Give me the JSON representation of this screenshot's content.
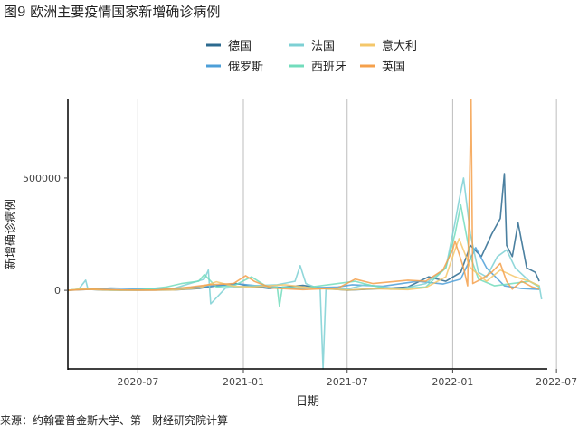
{
  "title": "图9 欧洲主要疫情国家新增确诊病例",
  "source": "来源：约翰霍普金斯大学、第一财经研究院计算",
  "chart_data": {
    "type": "line",
    "xlabel": "日期",
    "ylabel": "新增确诊病例",
    "xlim": [
      "2020-03-01",
      "2022-06-15"
    ],
    "ylim": [
      -350000,
      850000
    ],
    "x_ticks": [
      "2020-07",
      "2021-01",
      "2021-07",
      "2022-01",
      "2022-07"
    ],
    "y_ticks": [
      0,
      500000
    ],
    "y_tick_labels": [
      "0",
      "500000"
    ],
    "grid": "vertical-major",
    "legend_position": "top",
    "series": [
      {
        "name": "德国",
        "color": "#2c6a8f",
        "points": [
          [
            "2020-03-01",
            0
          ],
          [
            "2020-04-01",
            5000
          ],
          [
            "2020-05-01",
            1000
          ],
          [
            "2020-07-01",
            500
          ],
          [
            "2020-09-01",
            1500
          ],
          [
            "2020-10-15",
            8000
          ],
          [
            "2020-11-15",
            20000
          ],
          [
            "2020-12-20",
            30000
          ],
          [
            "2021-01-15",
            18000
          ],
          [
            "2021-02-15",
            8000
          ],
          [
            "2021-04-15",
            22000
          ],
          [
            "2021-05-15",
            10000
          ],
          [
            "2021-07-01",
            800
          ],
          [
            "2021-08-15",
            6000
          ],
          [
            "2021-09-15",
            10000
          ],
          [
            "2021-10-15",
            15000
          ],
          [
            "2021-11-20",
            60000
          ],
          [
            "2021-12-20",
            40000
          ],
          [
            "2022-01-15",
            80000
          ],
          [
            "2022-02-01",
            200000
          ],
          [
            "2022-02-20",
            150000
          ],
          [
            "2022-03-10",
            250000
          ],
          [
            "2022-03-25",
            320000
          ],
          [
            "2022-04-01",
            520000
          ],
          [
            "2022-04-05",
            200000
          ],
          [
            "2022-04-15",
            150000
          ],
          [
            "2022-04-25",
            300000
          ],
          [
            "2022-05-10",
            100000
          ],
          [
            "2022-05-25",
            80000
          ],
          [
            "2022-06-01",
            40000
          ]
        ]
      },
      {
        "name": "俄罗斯",
        "color": "#4d9fd8",
        "points": [
          [
            "2020-03-01",
            0
          ],
          [
            "2020-04-15",
            5000
          ],
          [
            "2020-05-15",
            10000
          ],
          [
            "2020-07-01",
            7000
          ],
          [
            "2020-09-01",
            5000
          ],
          [
            "2020-11-01",
            18000
          ],
          [
            "2020-12-25",
            28000
          ],
          [
            "2021-02-01",
            18000
          ],
          [
            "2021-04-01",
            9000
          ],
          [
            "2021-06-15",
            15000
          ],
          [
            "2021-07-10",
            25000
          ],
          [
            "2021-09-01",
            18000
          ],
          [
            "2021-11-01",
            40000
          ],
          [
            "2021-12-15",
            28000
          ],
          [
            "2022-01-15",
            50000
          ],
          [
            "2022-02-10",
            190000
          ],
          [
            "2022-03-01",
            100000
          ],
          [
            "2022-04-01",
            20000
          ],
          [
            "2022-05-01",
            8000
          ],
          [
            "2022-06-01",
            4000
          ]
        ]
      },
      {
        "name": "法国",
        "color": "#7dd0d4",
        "points": [
          [
            "2020-03-01",
            0
          ],
          [
            "2020-03-20",
            5000
          ],
          [
            "2020-04-01",
            45000
          ],
          [
            "2020-04-05",
            5000
          ],
          [
            "2020-06-01",
            500
          ],
          [
            "2020-09-01",
            8000
          ],
          [
            "2020-10-25",
            50000
          ],
          [
            "2020-11-01",
            90000
          ],
          [
            "2020-11-05",
            -60000
          ],
          [
            "2020-12-01",
            10000
          ],
          [
            "2021-01-15",
            20000
          ],
          [
            "2021-03-01",
            25000
          ],
          [
            "2021-04-01",
            40000
          ],
          [
            "2021-04-10",
            110000
          ],
          [
            "2021-04-20",
            30000
          ],
          [
            "2021-05-15",
            5000
          ],
          [
            "2021-05-20",
            -350000
          ],
          [
            "2021-05-25",
            5000
          ],
          [
            "2021-07-01",
            5000
          ],
          [
            "2021-08-01",
            25000
          ],
          [
            "2021-10-01",
            6000
          ],
          [
            "2021-11-15",
            30000
          ],
          [
            "2021-12-20",
            100000
          ],
          [
            "2022-01-05",
            300000
          ],
          [
            "2022-01-12",
            400000
          ],
          [
            "2022-01-20",
            500000
          ],
          [
            "2022-02-01",
            250000
          ],
          [
            "2022-02-15",
            80000
          ],
          [
            "2022-03-01",
            60000
          ],
          [
            "2022-03-20",
            150000
          ],
          [
            "2022-04-05",
            180000
          ],
          [
            "2022-04-20",
            100000
          ],
          [
            "2022-05-15",
            40000
          ],
          [
            "2022-06-01",
            20000
          ],
          [
            "2022-06-05",
            -40000
          ]
        ]
      },
      {
        "name": "西班牙",
        "color": "#72dcbc",
        "points": [
          [
            "2020-03-01",
            0
          ],
          [
            "2020-04-01",
            8000
          ],
          [
            "2020-05-15",
            500
          ],
          [
            "2020-07-01",
            1000
          ],
          [
            "2020-08-20",
            15000
          ],
          [
            "2020-09-15",
            30000
          ],
          [
            "2020-10-15",
            40000
          ],
          [
            "2020-10-25",
            70000
          ],
          [
            "2020-11-15",
            15000
          ],
          [
            "2020-12-15",
            20000
          ],
          [
            "2021-01-15",
            60000
          ],
          [
            "2021-02-15",
            10000
          ],
          [
            "2021-03-01",
            15000
          ],
          [
            "2021-03-05",
            -70000
          ],
          [
            "2021-03-10",
            15000
          ],
          [
            "2021-04-15",
            10000
          ],
          [
            "2021-07-15",
            40000
          ],
          [
            "2021-08-15",
            20000
          ],
          [
            "2021-09-15",
            5000
          ],
          [
            "2021-11-15",
            15000
          ],
          [
            "2021-12-20",
            100000
          ],
          [
            "2022-01-05",
            250000
          ],
          [
            "2022-01-15",
            380000
          ],
          [
            "2022-02-01",
            150000
          ],
          [
            "2022-02-15",
            50000
          ],
          [
            "2022-03-15",
            20000
          ],
          [
            "2022-04-15",
            30000
          ],
          [
            "2022-05-15",
            40000
          ],
          [
            "2022-06-01",
            15000
          ]
        ]
      },
      {
        "name": "意大利",
        "color": "#f4c76a",
        "points": [
          [
            "2020-03-01",
            0
          ],
          [
            "2020-03-25",
            6000
          ],
          [
            "2020-05-01",
            1500
          ],
          [
            "2020-07-01",
            300
          ],
          [
            "2020-09-01",
            1500
          ],
          [
            "2020-10-15",
            10000
          ],
          [
            "2020-11-15",
            38000
          ],
          [
            "2020-12-15",
            18000
          ],
          [
            "2021-01-15",
            15000
          ],
          [
            "2021-03-15",
            25000
          ],
          [
            "2021-05-01",
            10000
          ],
          [
            "2021-07-01",
            1000
          ],
          [
            "2021-08-15",
            7000
          ],
          [
            "2021-10-15",
            3000
          ],
          [
            "2021-11-15",
            12000
          ],
          [
            "2021-12-20",
            60000
          ],
          [
            "2022-01-05",
            180000
          ],
          [
            "2022-01-12",
            230000
          ],
          [
            "2022-02-01",
            100000
          ],
          [
            "2022-03-01",
            40000
          ],
          [
            "2022-03-25",
            90000
          ],
          [
            "2022-04-20",
            60000
          ],
          [
            "2022-05-15",
            40000
          ],
          [
            "2022-06-01",
            20000
          ]
        ]
      },
      {
        "name": "英国",
        "color": "#f5a04b",
        "points": [
          [
            "2020-03-01",
            0
          ],
          [
            "2020-04-15",
            5000
          ],
          [
            "2020-06-01",
            1500
          ],
          [
            "2020-08-01",
            1000
          ],
          [
            "2020-10-01",
            15000
          ],
          [
            "2020-11-01",
            25000
          ],
          [
            "2020-12-15",
            30000
          ],
          [
            "2021-01-05",
            65000
          ],
          [
            "2021-01-20",
            40000
          ],
          [
            "2021-02-20",
            10000
          ],
          [
            "2021-04-15",
            3000
          ],
          [
            "2021-06-15",
            10000
          ],
          [
            "2021-07-15",
            50000
          ],
          [
            "2021-08-15",
            30000
          ],
          [
            "2021-10-15",
            45000
          ],
          [
            "2021-11-15",
            40000
          ],
          [
            "2021-12-15",
            90000
          ],
          [
            "2022-01-01",
            180000
          ],
          [
            "2022-01-05",
            220000
          ],
          [
            "2022-01-20",
            100000
          ],
          [
            "2022-01-27",
            20000
          ],
          [
            "2022-02-02",
            850000
          ],
          [
            "2022-02-05",
            30000
          ],
          [
            "2022-02-20",
            50000
          ],
          [
            "2022-03-10",
            80000
          ],
          [
            "2022-03-25",
            120000
          ],
          [
            "2022-04-05",
            40000
          ],
          [
            "2022-04-15",
            5000
          ],
          [
            "2022-05-01",
            40000
          ],
          [
            "2022-05-20",
            15000
          ],
          [
            "2022-06-01",
            5000
          ]
        ]
      }
    ]
  }
}
